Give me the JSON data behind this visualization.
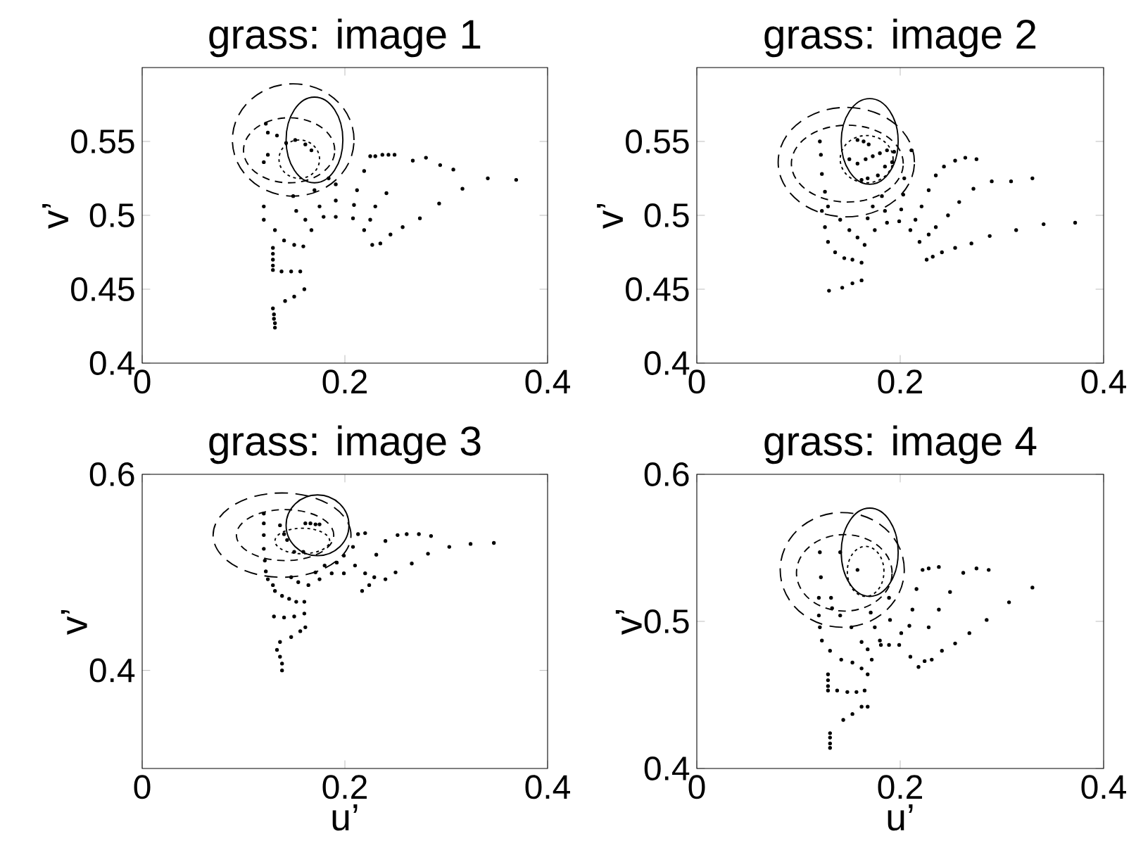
{
  "chart_data": [
    {
      "type": "scatter",
      "title": "grass: image 1",
      "ylabel": "v’",
      "xlim": [
        0,
        0.4
      ],
      "xticks": [
        0,
        0.2,
        0.4
      ],
      "ylim": [
        0.4,
        0.6
      ],
      "yticks": [
        0.4,
        0.45,
        0.5,
        0.55
      ],
      "marker": "circle",
      "series": [
        {
          "color": "#000000",
          "x": [
            0.225,
            0.23,
            0.237,
            0.243,
            0.249,
            0.219,
            0.212,
            0.209,
            0.208,
            0.219,
            0.227,
            0.235,
            0.245,
            0.257,
            0.274,
            0.293,
            0.316,
            0.341,
            0.369,
            0.267,
            0.28,
            0.294,
            0.307,
            0.241,
            0.23,
            0.225,
            0.122,
            0.124,
            0.124,
            0.12,
            0.12,
            0.12,
            0.131,
            0.14,
            0.15,
            0.159,
            0.129,
            0.129,
            0.129,
            0.129,
            0.129,
            0.1375,
            0.147,
            0.156,
            0.16,
            0.15,
            0.141,
            0.129,
            0.13,
            0.13,
            0.131,
            0.131,
            0.133,
            0.142,
            0.151,
            0.161,
            0.167,
            0.152,
            0.161,
            0.167,
            0.175,
            0.179,
            0.191,
            0.191,
            0.184,
            0.191,
            0.17,
            0.149
          ],
          "values": [
            0.54,
            0.54,
            0.541,
            0.541,
            0.541,
            0.53,
            0.517,
            0.507,
            0.498,
            0.49,
            0.48,
            0.481,
            0.487,
            0.492,
            0.498,
            0.508,
            0.518,
            0.525,
            0.524,
            0.537,
            0.539,
            0.534,
            0.531,
            0.515,
            0.506,
            0.497,
            0.562,
            0.556,
            0.541,
            0.536,
            0.506,
            0.497,
            0.49,
            0.483,
            0.48,
            0.479,
            0.478,
            0.474,
            0.47,
            0.466,
            0.463,
            0.462,
            0.462,
            0.462,
            0.45,
            0.445,
            0.442,
            0.437,
            0.433,
            0.43,
            0.427,
            0.424,
            0.554,
            0.549,
            0.551,
            0.548,
            0.544,
            0.503,
            0.497,
            0.49,
            0.506,
            0.499,
            0.499,
            0.51,
            0.525,
            0.521,
            0.517,
            0.513
          ]
        }
      ]
    },
    {
      "type": "scatter",
      "title": "grass: image 2",
      "ylabel": "v’",
      "xlim": [
        0,
        0.4
      ],
      "xticks": [
        0,
        0.2,
        0.4
      ],
      "ylim": [
        0.4,
        0.6
      ],
      "yticks": [
        0.4,
        0.45,
        0.5,
        0.55
      ],
      "marker": "circle",
      "series": [
        {
          "color": "#000000",
          "x": [
            0.121,
            0.122,
            0.123,
            0.126,
            0.129,
            0.123,
            0.126,
            0.129,
            0.136,
            0.145,
            0.153,
            0.162,
            0.13,
            0.143,
            0.153,
            0.162,
            0.141,
            0.15,
            0.158,
            0.165,
            0.168,
            0.173,
            0.175,
            0.182,
            0.185,
            0.187,
            0.199,
            0.201,
            0.203,
            0.21,
            0.215,
            0.219,
            0.221,
            0.226,
            0.232,
            0.241,
            0.254,
            0.27,
            0.288,
            0.314,
            0.341,
            0.372,
            0.228,
            0.235,
            0.247,
            0.258,
            0.272,
            0.29,
            0.309,
            0.33,
            0.228,
            0.235,
            0.243,
            0.254,
            0.264,
            0.275,
            0.158,
            0.164,
            0.169,
            0.15,
            0.158,
            0.166,
            0.173,
            0.18,
            0.187,
            0.194,
            0.192,
            0.185,
            0.178,
            0.168,
            0.162,
            0.204,
            0.211
          ],
          "values": [
            0.55,
            0.541,
            0.528,
            0.516,
            0.506,
            0.503,
            0.492,
            0.482,
            0.475,
            0.471,
            0.47,
            0.468,
            0.449,
            0.451,
            0.454,
            0.456,
            0.497,
            0.49,
            0.485,
            0.48,
            0.498,
            0.506,
            0.49,
            0.513,
            0.503,
            0.495,
            0.496,
            0.504,
            0.514,
            0.49,
            0.497,
            0.482,
            0.506,
            0.47,
            0.472,
            0.475,
            0.478,
            0.481,
            0.486,
            0.49,
            0.494,
            0.495,
            0.487,
            0.492,
            0.5,
            0.509,
            0.518,
            0.523,
            0.523,
            0.525,
            0.517,
            0.527,
            0.533,
            0.537,
            0.539,
            0.538,
            0.551,
            0.55,
            0.548,
            0.538,
            0.535,
            0.538,
            0.54,
            0.542,
            0.544,
            0.543,
            0.536,
            0.533,
            0.527,
            0.525,
            0.524,
            0.525,
            0.544
          ]
        }
      ]
    },
    {
      "type": "scatter",
      "title": "grass: image 3",
      "xlabel": "u’",
      "ylabel": "v’",
      "xlim": [
        0,
        0.4
      ],
      "xticks": [
        0,
        0.2,
        0.4
      ],
      "ylim": [
        0.3,
        0.6
      ],
      "yticks": [
        0.4,
        0.6
      ],
      "marker": "circle",
      "series": [
        {
          "color": "#000000",
          "x": [
            0.12,
            0.12,
            0.12,
            0.12,
            0.121,
            0.122,
            0.124,
            0.129,
            0.131,
            0.138,
            0.145,
            0.152,
            0.16,
            0.13,
            0.14,
            0.15,
            0.16,
            0.161,
            0.156,
            0.147,
            0.136,
            0.133,
            0.136,
            0.138,
            0.138,
            0.136,
            0.14,
            0.143,
            0.147,
            0.154,
            0.164,
            0.175,
            0.171,
            0.18,
            0.187,
            0.199,
            0.192,
            0.199,
            0.208,
            0.21,
            0.22,
            0.217,
            0.224,
            0.229,
            0.231,
            0.24,
            0.24,
            0.25,
            0.252,
            0.261,
            0.273,
            0.285,
            0.282,
            0.266,
            0.303,
            0.324,
            0.347,
            0.213,
            0.22,
            0.161,
            0.166,
            0.171,
            0.175,
            0.15,
            0.159
          ],
          "values": [
            0.56,
            0.55,
            0.538,
            0.524,
            0.512,
            0.501,
            0.493,
            0.487,
            0.481,
            0.476,
            0.473,
            0.47,
            0.47,
            0.455,
            0.454,
            0.455,
            0.458,
            0.444,
            0.44,
            0.434,
            0.429,
            0.421,
            0.414,
            0.407,
            0.4,
            0.548,
            0.539,
            0.533,
            0.495,
            0.49,
            0.487,
            0.493,
            0.5,
            0.507,
            0.499,
            0.499,
            0.51,
            0.517,
            0.526,
            0.507,
            0.499,
            0.481,
            0.487,
            0.495,
            0.518,
            0.532,
            0.493,
            0.5,
            0.538,
            0.539,
            0.539,
            0.537,
            0.519,
            0.509,
            0.526,
            0.529,
            0.53,
            0.539,
            0.54,
            0.55,
            0.55,
            0.549,
            0.549,
            0.521,
            0.521
          ]
        }
      ]
    },
    {
      "type": "scatter",
      "title": "grass: image 4",
      "xlabel": "u’",
      "ylabel": "v’",
      "xlim": [
        0,
        0.4
      ],
      "xticks": [
        0,
        0.2,
        0.4
      ],
      "ylim": [
        0.4,
        0.6
      ],
      "yticks": [
        0.4,
        0.5,
        0.6
      ],
      "marker": "circle",
      "series": [
        {
          "color": "#000000",
          "x": [
            0.121,
            0.122,
            0.12,
            0.132,
            0.12,
            0.121,
            0.123,
            0.131,
            0.142,
            0.153,
            0.162,
            0.168,
            0.129,
            0.129,
            0.129,
            0.129,
            0.138,
            0.148,
            0.157,
            0.165,
            0.168,
            0.162,
            0.153,
            0.144,
            0.131,
            0.131,
            0.131,
            0.131,
            0.141,
            0.158,
            0.133,
            0.141,
            0.152,
            0.162,
            0.168,
            0.172,
            0.175,
            0.18,
            0.181,
            0.189,
            0.19,
            0.199,
            0.201,
            0.209,
            0.21,
            0.212,
            0.218,
            0.224,
            0.231,
            0.228,
            0.238,
            0.241,
            0.249,
            0.254,
            0.268,
            0.285,
            0.307,
            0.33,
            0.216,
            0.222,
            0.228,
            0.238,
            0.262,
            0.275,
            0.287,
            0.171,
            0.189
          ],
          "values": [
            0.547,
            0.53,
            0.516,
            0.516,
            0.504,
            0.496,
            0.487,
            0.48,
            0.474,
            0.472,
            0.468,
            0.464,
            0.464,
            0.46,
            0.456,
            0.453,
            0.453,
            0.452,
            0.452,
            0.453,
            0.442,
            0.442,
            0.437,
            0.433,
            0.424,
            0.421,
            0.417,
            0.414,
            0.547,
            0.535,
            0.509,
            0.504,
            0.496,
            0.486,
            0.481,
            0.474,
            0.496,
            0.487,
            0.484,
            0.484,
            0.501,
            0.484,
            0.492,
            0.497,
            0.476,
            0.508,
            0.469,
            0.473,
            0.474,
            0.496,
            0.508,
            0.48,
            0.52,
            0.485,
            0.492,
            0.501,
            0.513,
            0.523,
            0.522,
            0.535,
            0.536,
            0.537,
            0.533,
            0.536,
            0.535,
            0.506,
            0.516
          ]
        }
      ]
    }
  ]
}
